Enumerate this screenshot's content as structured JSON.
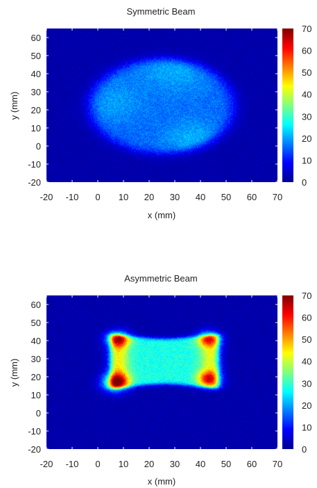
{
  "chart_data": [
    {
      "type": "heatmap",
      "title": "Symmetric Beam",
      "xlabel": "x (mm)",
      "ylabel": "y (mm)",
      "xlim": [
        -20,
        70
      ],
      "ylim": [
        -20,
        65
      ],
      "xticks": [
        -20,
        -10,
        0,
        10,
        20,
        30,
        40,
        50,
        60,
        70
      ],
      "yticks": [
        -20,
        -10,
        0,
        10,
        20,
        30,
        40,
        50,
        60
      ],
      "colorbar": {
        "min": 0,
        "max": 70,
        "ticks": [
          0,
          10,
          20,
          30,
          40,
          50,
          60,
          70
        ],
        "colormap": "jet"
      },
      "background_value": 3,
      "beam": {
        "shape": "ellipse",
        "center": [
          25,
          22
        ],
        "semi_axes": [
          28,
          26
        ],
        "level": 13,
        "hotspots": [
          {
            "x": 30,
            "y": 44,
            "r": 10,
            "v": 5
          },
          {
            "x": 38,
            "y": 2,
            "r": 8,
            "v": 6
          },
          {
            "x": 5,
            "y": 24,
            "r": 8,
            "v": 4
          }
        ]
      },
      "grid": false,
      "legend": "colorbar-right"
    },
    {
      "type": "heatmap",
      "title": "Asymmetric Beam",
      "xlabel": "x (mm)",
      "ylabel": "y (mm)",
      "xlim": [
        -20,
        70
      ],
      "ylim": [
        -20,
        65
      ],
      "xticks": [
        -20,
        -10,
        0,
        10,
        20,
        30,
        40,
        50,
        60,
        70
      ],
      "yticks": [
        -20,
        -10,
        0,
        10,
        20,
        30,
        40,
        50,
        60
      ],
      "colorbar": {
        "min": 0,
        "max": 70,
        "ticks": [
          0,
          10,
          20,
          30,
          40,
          50,
          60,
          70
        ],
        "colormap": "jet"
      },
      "background_value": 3,
      "beam": {
        "shape": "rounded-rect-waisted",
        "x_range": [
          5,
          47
        ],
        "y_range": [
          13,
          44
        ],
        "level": 25,
        "edge_bands": [
          {
            "x": 8,
            "width": 4,
            "v": 16
          },
          {
            "x": 44,
            "width": 4,
            "v": 14
          }
        ],
        "hotspots": [
          {
            "x": 7,
            "y": 17,
            "r": 3.5,
            "v": 34
          },
          {
            "x": 8,
            "y": 41,
            "r": 3,
            "v": 28
          },
          {
            "x": 43,
            "y": 41,
            "r": 3,
            "v": 24
          },
          {
            "x": 43,
            "y": 19,
            "r": 3,
            "v": 24
          }
        ]
      },
      "grid": false,
      "legend": "colorbar-right"
    }
  ]
}
